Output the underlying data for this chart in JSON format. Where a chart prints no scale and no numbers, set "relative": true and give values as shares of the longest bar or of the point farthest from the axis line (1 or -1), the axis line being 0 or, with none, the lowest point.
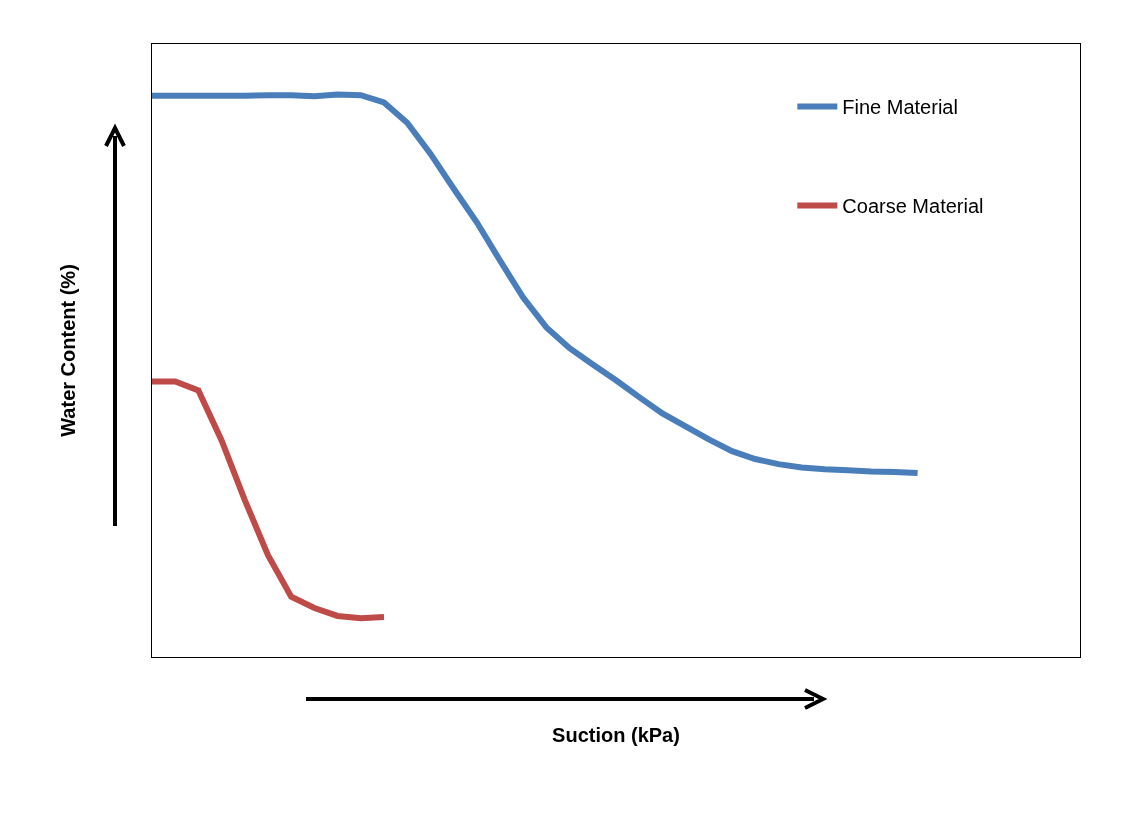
{
  "chart_data": {
    "type": "line",
    "relative": true,
    "xlabel": "Suction (kPa)",
    "ylabel": "Water Content (%)",
    "legend": "top right",
    "grid": false,
    "marker": "none",
    "line_style": "solid",
    "categories": [
      null,
      null,
      null,
      null,
      null,
      null,
      null,
      null,
      null,
      null,
      null,
      null,
      null,
      null,
      null,
      null,
      null,
      null,
      null,
      null,
      null,
      null,
      null,
      null,
      null,
      null,
      null,
      null,
      null,
      null,
      null,
      null,
      null,
      null,
      null,
      null,
      null,
      null,
      null,
      null,
      null
    ],
    "series": [
      {
        "name": "Fine Material",
        "color": "#4a7ebb",
        "values": [
          0.998,
          0.998,
          0.998,
          0.998,
          0.998,
          0.999,
          0.999,
          0.997,
          1,
          0.999,
          0.986,
          0.95,
          0.895,
          0.833,
          0.773,
          0.705,
          0.639,
          0.586,
          0.549,
          0.52,
          0.492,
          0.462,
          0.433,
          0.41,
          0.387,
          0.366,
          0.352,
          0.343,
          0.337,
          0.334,
          0.332,
          0.33,
          0.329,
          0.327,
          null,
          null,
          null,
          null,
          null,
          null,
          null
        ]
      },
      {
        "name": "Coarse Material",
        "color": "#be4b48",
        "values": [
          0.49,
          0.49,
          0.474,
          0.385,
          0.279,
          0.181,
          0.107,
          0.087,
          0.073,
          0.069,
          0.071,
          null,
          null,
          null,
          null,
          null,
          null,
          null,
          null,
          null,
          null,
          null,
          null,
          null,
          null,
          null,
          null,
          null,
          null,
          null,
          null,
          null,
          null,
          null,
          null,
          null,
          null,
          null,
          null,
          null,
          null
        ]
      }
    ]
  }
}
